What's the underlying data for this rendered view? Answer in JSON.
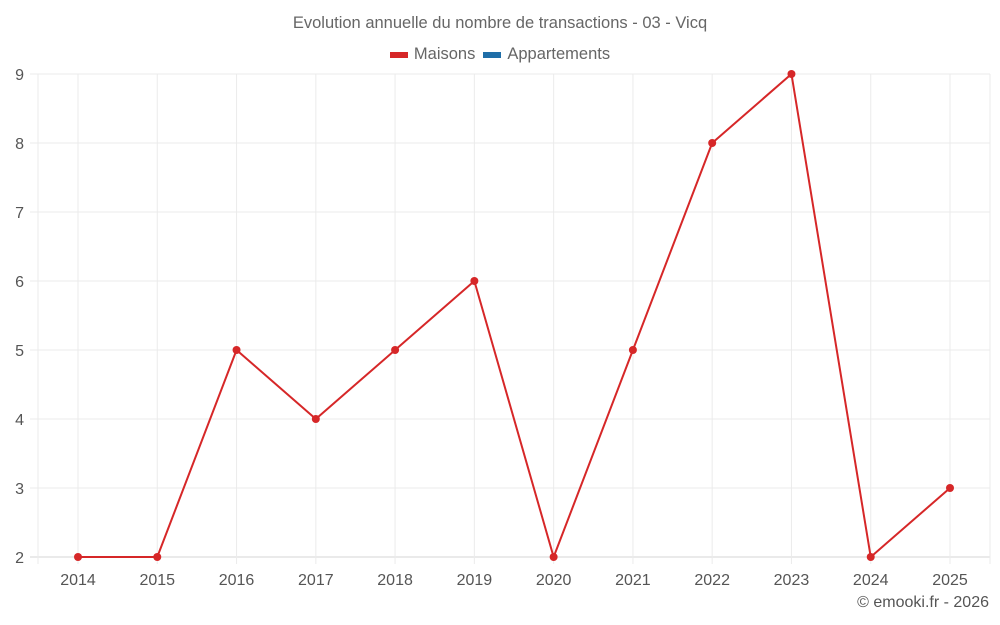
{
  "chart_data": {
    "type": "line",
    "title": "Evolution annuelle du nombre de transactions - 03 - Vicq",
    "xlabel": "",
    "ylabel": "",
    "categories": [
      "2014",
      "2015",
      "2016",
      "2017",
      "2018",
      "2019",
      "2020",
      "2021",
      "2022",
      "2023",
      "2024",
      "2025"
    ],
    "series": [
      {
        "name": "Maisons",
        "color": "#d62728",
        "values": [
          2,
          2,
          5,
          4,
          5,
          6,
          2,
          5,
          8,
          9,
          2,
          3
        ]
      },
      {
        "name": "Appartements",
        "color": "#1f6ea8",
        "values": []
      }
    ],
    "ylim": [
      2,
      9
    ],
    "yticks": [
      2,
      3,
      4,
      5,
      6,
      7,
      8,
      9
    ],
    "grid": true,
    "legend_position": "top"
  },
  "legend": {
    "items": [
      {
        "label": "Maisons",
        "color": "#d62728"
      },
      {
        "label": "Appartements",
        "color": "#1f6ea8"
      }
    ]
  },
  "credit": "© emooki.fr - 2026"
}
